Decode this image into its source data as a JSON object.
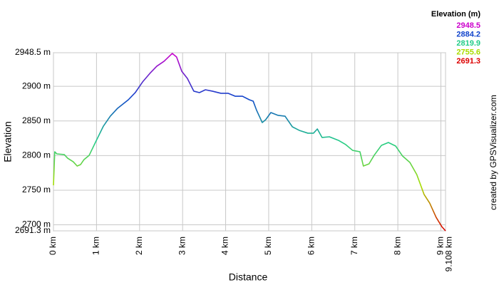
{
  "chart_data": {
    "type": "line",
    "x_label": "Distance",
    "y_label": "Elevation",
    "credit": "created by GPSVisualizer.com",
    "legend": {
      "title": "Elevation (m)",
      "corner": "top-right",
      "items": [
        {
          "value": 2948.5,
          "color": "#cc00cc"
        },
        {
          "value": 2884.2,
          "color": "#1144cc"
        },
        {
          "value": 2819.9,
          "color": "#22cc88"
        },
        {
          "value": 2755.6,
          "color": "#aadd00"
        },
        {
          "value": 2691.3,
          "color": "#dd0000"
        }
      ]
    },
    "grid": true,
    "xlim": [
      0,
      9.108
    ],
    "ylim": [
      2691.3,
      2948.5
    ],
    "xticks": [
      {
        "value": 0,
        "label": "0 km"
      },
      {
        "value": 1,
        "label": "1 km"
      },
      {
        "value": 2,
        "label": "2 km"
      },
      {
        "value": 3,
        "label": "3 km"
      },
      {
        "value": 4,
        "label": "4 km"
      },
      {
        "value": 5,
        "label": "5 km"
      },
      {
        "value": 6,
        "label": "6 km"
      },
      {
        "value": 7,
        "label": "7 km"
      },
      {
        "value": 8,
        "label": "8 km"
      },
      {
        "value": 9,
        "label": "9 km"
      },
      {
        "value": 9.108,
        "label": "9.108 km"
      }
    ],
    "yticks": [
      {
        "value": 2691.3,
        "label": "2691.3 m"
      },
      {
        "value": 2700,
        "label": "2700 m"
      },
      {
        "value": 2750,
        "label": "2750 m"
      },
      {
        "value": 2800,
        "label": "2800 m"
      },
      {
        "value": 2850,
        "label": "2850 m"
      },
      {
        "value": 2900,
        "label": "2900 m"
      },
      {
        "value": 2948.5,
        "label": "2948.5 m"
      }
    ],
    "series": [
      {
        "name": "Elevation",
        "x": [
          0,
          0.03,
          0.08,
          0.25,
          0.33,
          0.46,
          0.55,
          0.63,
          0.71,
          0.83,
          0.99,
          1.16,
          1.32,
          1.49,
          1.74,
          1.9,
          2.07,
          2.24,
          2.4,
          2.57,
          2.76,
          2.86,
          2.98,
          3.11,
          3.26,
          3.39,
          3.53,
          3.69,
          3.89,
          4.06,
          4.22,
          4.39,
          4.55,
          4.64,
          4.72,
          4.85,
          4.93,
          5.05,
          5.22,
          5.38,
          5.55,
          5.71,
          5.91,
          6.04,
          6.13,
          6.24,
          6.41,
          6.62,
          6.79,
          6.95,
          7.12,
          7.2,
          7.33,
          7.45,
          7.62,
          7.78,
          7.95,
          8.11,
          8.28,
          8.44,
          8.61,
          8.74,
          8.89,
          9.02,
          9.108
        ],
        "values": [
          2757.1,
          2805.5,
          2802.4,
          2801.4,
          2796.2,
          2791,
          2784.9,
          2787,
          2794.2,
          2800.4,
          2821,
          2842.5,
          2856.9,
          2868.3,
          2880.6,
          2890.9,
          2906.3,
          2918.7,
          2929,
          2936.2,
          2947.5,
          2942.3,
          2921.8,
          2911.5,
          2893,
          2890.9,
          2895,
          2893,
          2889.9,
          2889.9,
          2885.7,
          2885.7,
          2880.6,
          2878.5,
          2865.2,
          2847.7,
          2851.8,
          2862.1,
          2858,
          2856.9,
          2841.5,
          2836.4,
          2832.3,
          2832.3,
          2838.4,
          2826.1,
          2827.1,
          2822,
          2815.8,
          2807.5,
          2805.5,
          2784.9,
          2788,
          2800.4,
          2814.8,
          2818.9,
          2813.7,
          2799.3,
          2790.1,
          2772.6,
          2743.8,
          2731.4,
          2710.8,
          2697.5,
          2691.3
        ]
      }
    ]
  }
}
